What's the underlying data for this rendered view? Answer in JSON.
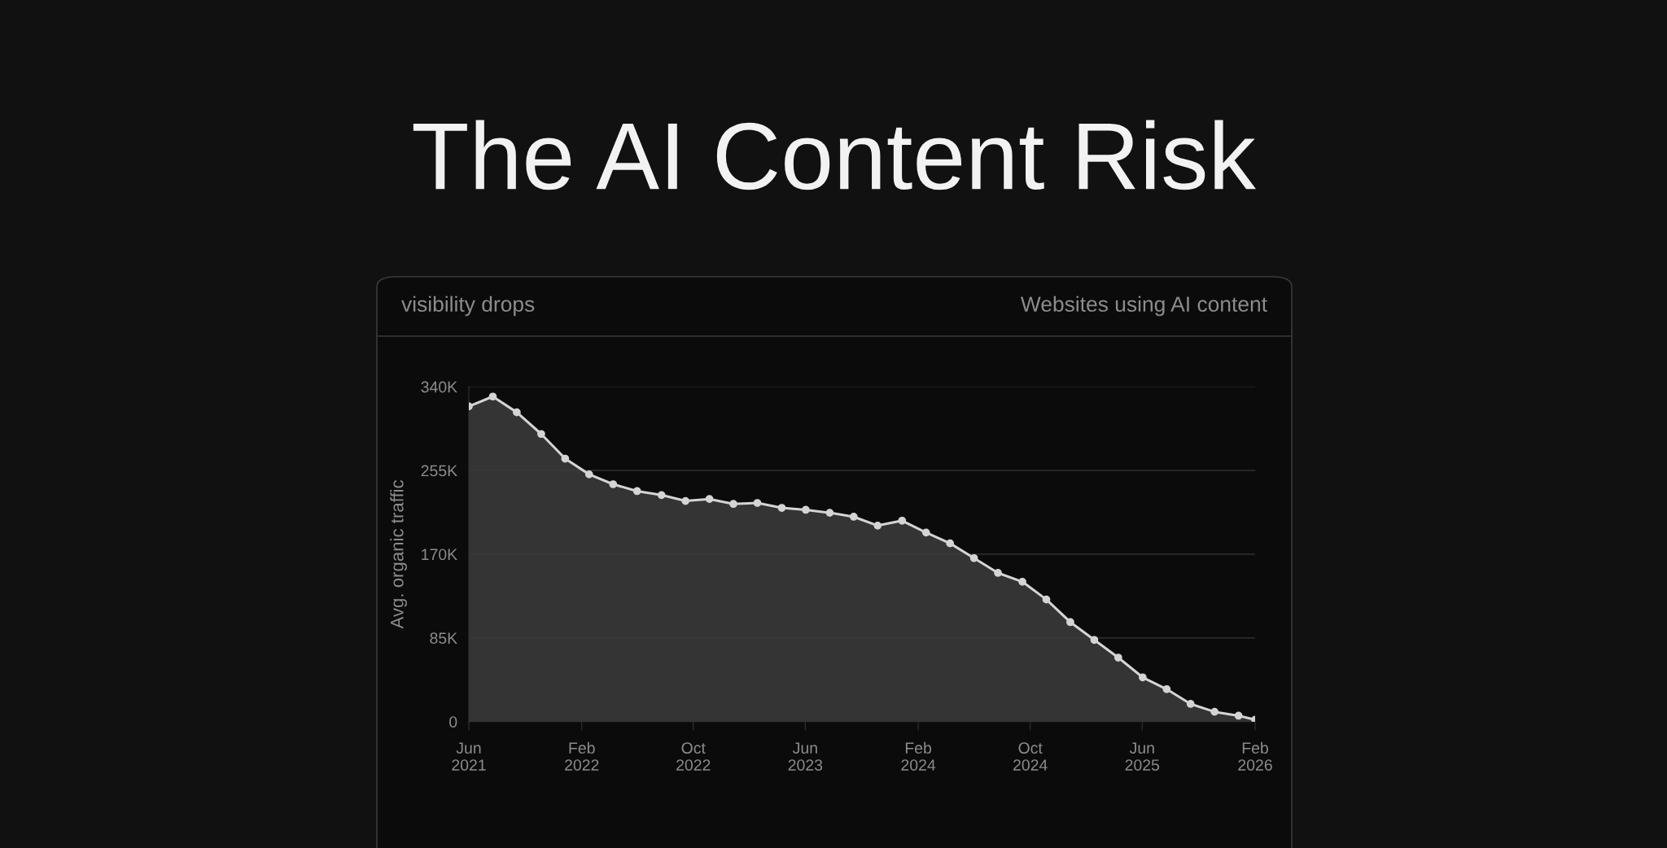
{
  "chart_data": {
    "type": "area",
    "title": "The AI Content Risk",
    "subtitle": "visibility drops",
    "annotations": [
      "Websites using AI content"
    ],
    "ylabel": "Avg. organic traffic",
    "x": [
      "2021-06-01",
      "2021-07-23",
      "2021-09-13",
      "2021-11-05",
      "2021-12-27",
      "2022-02-17",
      "2022-04-10",
      "2022-06-01",
      "2022-07-24",
      "2022-09-14",
      "2022-11-05",
      "2022-12-27",
      "2023-02-17",
      "2023-04-11",
      "2023-06-02",
      "2023-07-24",
      "2023-09-14",
      "2023-11-05",
      "2023-12-28",
      "2024-02-18",
      "2024-04-10",
      "2024-06-01",
      "2024-07-23",
      "2024-09-14",
      "2024-11-05",
      "2024-12-27",
      "2025-02-17",
      "2025-04-10",
      "2025-06-02",
      "2025-07-24",
      "2025-09-14",
      "2025-11-05",
      "2025-12-27",
      "2026-02-01"
    ],
    "series": [
      {
        "color": "#d4d4d4",
        "values": [
          320000,
          330000,
          314000,
          292000,
          267000,
          251000,
          241000,
          234000,
          230000,
          224000,
          226000,
          221000,
          222000,
          217000,
          215000,
          212000,
          208000,
          199000,
          204000,
          192000,
          181000,
          166000,
          151000,
          142000,
          124000,
          101000,
          83000,
          65000,
          45000,
          33000,
          18000,
          10000,
          6000,
          2000
        ]
      }
    ],
    "xlim": [
      "2021-06-01",
      "2026-02-01"
    ],
    "xticks": [
      {
        "value": "2021-06-01",
        "label": "Jun\n2021"
      },
      {
        "value": "2022-02-01",
        "label": "Feb\n2022"
      },
      {
        "value": "2022-10-01",
        "label": "Oct\n2022"
      },
      {
        "value": "2023-06-01",
        "label": "Jun\n2023"
      },
      {
        "value": "2024-02-01",
        "label": "Feb\n2024"
      },
      {
        "value": "2024-10-01",
        "label": "Oct\n2024"
      },
      {
        "value": "2025-06-01",
        "label": "Jun\n2025"
      },
      {
        "value": "2026-02-01",
        "label": "Feb\n2026"
      }
    ],
    "ylim": [
      0,
      340000
    ],
    "yticks": [
      {
        "value": 0,
        "label": "0"
      },
      {
        "value": 85000,
        "label": "85K"
      },
      {
        "value": 170000,
        "label": "170K"
      },
      {
        "value": 255000,
        "label": "255K"
      },
      {
        "value": 340000,
        "label": "340K"
      }
    ],
    "grid": "y",
    "marker": "circle",
    "line_style": "solid"
  }
}
